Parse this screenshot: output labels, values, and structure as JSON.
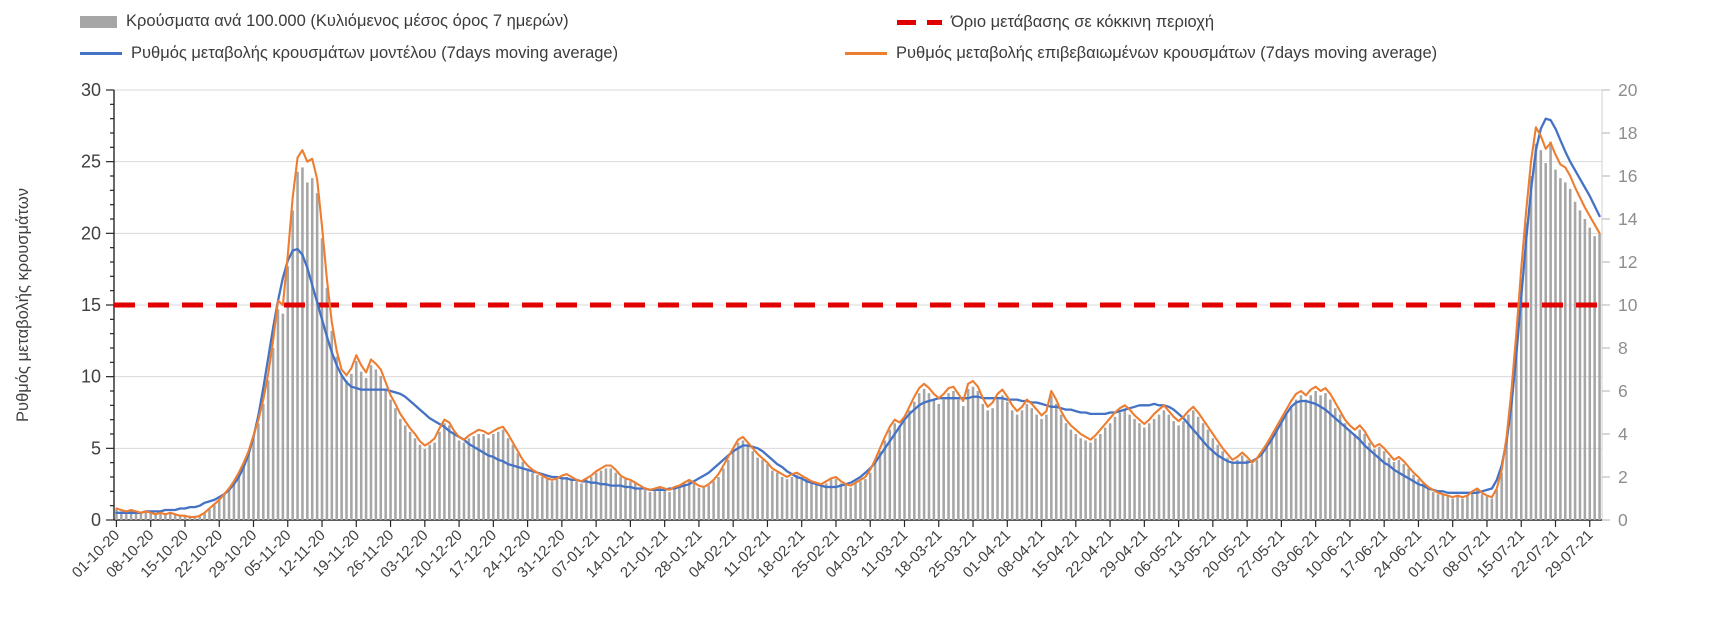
{
  "chart_data": {
    "type": "combo",
    "subtype": "bar+line",
    "grid": "horizontal",
    "legend_position": "top",
    "x_tick_interval_days": 7,
    "x_tick_labels": [
      "01-10-20",
      "08-10-20",
      "15-10-20",
      "22-10-20",
      "29-10-20",
      "05-11-20",
      "12-11-20",
      "19-11-20",
      "26-11-20",
      "03-12-20",
      "10-12-20",
      "17-12-20",
      "24-12-20",
      "31-12-20",
      "07-01-21",
      "14-01-21",
      "21-01-21",
      "28-01-21",
      "04-02-21",
      "11-02-21",
      "18-02-21",
      "25-02-21",
      "04-03-21",
      "11-03-21",
      "18-03-21",
      "25-03-21",
      "01-04-21",
      "08-04-21",
      "15-04-21",
      "22-04-21",
      "29-04-21",
      "06-05-21",
      "13-05-21",
      "20-05-21",
      "27-05-21",
      "03-06-21",
      "10-06-21",
      "17-06-21",
      "24-06-21",
      "01-07-21",
      "08-07-21",
      "15-07-21",
      "22-07-21",
      "29-07-21"
    ],
    "left_axis": {
      "title": "Ρυθμός μεταβολής κρουσμάτων",
      "min": 0,
      "max": 30,
      "major": 5,
      "minor": 1,
      "ticks": [
        0,
        5,
        10,
        15,
        20,
        25,
        30
      ],
      "label_color": "#404040"
    },
    "right_axis": {
      "min": 0,
      "max": 20,
      "major": 2,
      "ticks": [
        0,
        2,
        4,
        6,
        8,
        10,
        12,
        14,
        16,
        18,
        20
      ],
      "label_color": "#8e8e8e"
    },
    "threshold": {
      "label": "Όριο μετάβασης σε κόκκινη περιοχή",
      "value_left_axis": 15,
      "color": "#e00000"
    },
    "series": [
      {
        "name": "Κρούσματα ανά 100.000 (Κυλιόμενος μέσος όρος 7 ημερών)",
        "type": "bar",
        "axis": "right",
        "color": "#a6a6a6",
        "values": [
          0.5,
          0.4,
          0.4,
          0.5,
          0.4,
          0.3,
          0.4,
          0.3,
          0.3,
          0.3,
          0.3,
          0.3,
          0.3,
          0.2,
          0.2,
          0.2,
          0.2,
          0.2,
          0.3,
          0.5,
          0.7,
          0.9,
          1.2,
          1.4,
          1.7,
          2.1,
          2.6,
          3.1,
          3.8,
          4.5,
          5.4,
          6.5,
          8.0,
          9.8,
          9.6,
          11.8,
          14.4,
          16.2,
          16.4,
          15.7,
          15.9,
          15.2,
          13.1,
          10.8,
          8.8,
          7.6,
          6.7,
          6.5,
          6.8,
          7.4,
          6.9,
          6.6,
          7.2,
          7.0,
          6.7,
          6.1,
          5.6,
          5.2,
          4.7,
          4.4,
          4.1,
          3.8,
          3.5,
          3.3,
          3.5,
          3.6,
          4.1,
          4.5,
          4.4,
          4.0,
          3.7,
          3.6,
          3.8,
          3.9,
          4.0,
          4.0,
          3.8,
          4.0,
          4.1,
          4.2,
          3.8,
          3.5,
          3.1,
          2.7,
          2.4,
          2.2,
          2.1,
          2.0,
          1.9,
          1.8,
          1.9,
          2.0,
          2.0,
          1.9,
          1.8,
          1.7,
          1.9,
          2.0,
          2.2,
          2.3,
          2.4,
          2.4,
          2.2,
          2.0,
          1.9,
          1.8,
          1.7,
          1.5,
          1.4,
          1.3,
          1.4,
          1.5,
          1.4,
          1.3,
          1.5,
          1.5,
          1.7,
          1.8,
          1.7,
          1.5,
          1.5,
          1.6,
          1.8,
          2.0,
          2.4,
          2.8,
          3.2,
          3.6,
          3.7,
          3.5,
          3.2,
          2.9,
          2.8,
          2.6,
          2.3,
          2.2,
          2.0,
          1.9,
          2.0,
          2.1,
          2.0,
          1.9,
          1.7,
          1.7,
          1.6,
          1.7,
          1.9,
          1.9,
          1.7,
          1.6,
          1.5,
          1.7,
          1.8,
          1.9,
          2.2,
          2.7,
          3.2,
          3.7,
          4.2,
          4.5,
          4.4,
          4.6,
          5.1,
          5.5,
          5.9,
          6.1,
          5.9,
          5.6,
          5.4,
          5.6,
          5.9,
          6.0,
          5.6,
          5.3,
          6.1,
          6.2,
          6.0,
          5.4,
          5.1,
          5.2,
          5.6,
          5.8,
          5.5,
          5.1,
          4.9,
          5.1,
          5.4,
          5.2,
          4.9,
          4.7,
          4.9,
          5.8,
          5.4,
          4.9,
          4.5,
          4.2,
          4.0,
          3.8,
          3.7,
          3.6,
          3.8,
          4.0,
          4.3,
          4.5,
          4.8,
          5.0,
          5.1,
          4.9,
          4.7,
          4.5,
          4.3,
          4.5,
          4.7,
          4.9,
          5.1,
          4.9,
          4.6,
          4.4,
          4.6,
          4.9,
          5.1,
          4.8,
          4.5,
          4.2,
          3.8,
          3.5,
          3.2,
          2.9,
          2.7,
          2.8,
          3.0,
          2.8,
          2.6,
          2.8,
          3.1,
          3.4,
          3.8,
          4.2,
          4.5,
          4.9,
          5.3,
          5.6,
          5.8,
          5.6,
          5.8,
          6.0,
          5.8,
          5.9,
          5.6,
          5.2,
          4.9,
          4.5,
          4.2,
          4.0,
          4.2,
          4.0,
          3.6,
          3.3,
          3.4,
          3.2,
          2.9,
          2.7,
          2.8,
          2.6,
          2.4,
          2.1,
          1.9,
          1.7,
          1.5,
          1.3,
          1.2,
          1.2,
          1.1,
          1.0,
          1.1,
          1.0,
          1.1,
          1.3,
          1.4,
          1.2,
          1.1,
          1.0,
          1.4,
          2.2,
          3.7,
          5.8,
          8.3,
          11.2,
          13.8,
          16.0,
          17.5,
          17.2,
          16.6,
          17.6,
          16.3,
          15.9,
          15.7,
          15.4,
          14.8,
          14.4,
          14.0,
          13.6,
          13.2,
          13.3
        ]
      },
      {
        "name": "Ρυθμός μεταβολής κρουσμάτων μοντέλου (7days moving average)",
        "type": "line",
        "axis": "left",
        "color": "#4472c4",
        "values": [
          0.5,
          0.5,
          0.5,
          0.5,
          0.5,
          0.5,
          0.6,
          0.6,
          0.6,
          0.6,
          0.7,
          0.7,
          0.7,
          0.8,
          0.8,
          0.9,
          0.9,
          1.0,
          1.2,
          1.3,
          1.4,
          1.6,
          1.8,
          2.1,
          2.5,
          3.0,
          3.7,
          4.6,
          5.8,
          7.3,
          9.2,
          11.3,
          13.4,
          15.3,
          16.9,
          18.1,
          18.8,
          18.9,
          18.5,
          17.6,
          16.4,
          15.2,
          14.0,
          12.8,
          11.7,
          10.8,
          10.1,
          9.6,
          9.3,
          9.2,
          9.1,
          9.1,
          9.1,
          9.1,
          9.1,
          9.1,
          9.0,
          8.9,
          8.8,
          8.6,
          8.3,
          8.0,
          7.7,
          7.4,
          7.1,
          6.9,
          6.7,
          6.5,
          6.2,
          6.0,
          5.8,
          5.6,
          5.3,
          5.1,
          4.9,
          4.7,
          4.5,
          4.4,
          4.2,
          4.1,
          3.9,
          3.8,
          3.7,
          3.6,
          3.5,
          3.4,
          3.3,
          3.2,
          3.1,
          3.0,
          3.0,
          2.9,
          2.9,
          2.8,
          2.8,
          2.7,
          2.7,
          2.6,
          2.6,
          2.5,
          2.5,
          2.4,
          2.4,
          2.4,
          2.3,
          2.3,
          2.2,
          2.2,
          2.2,
          2.1,
          2.1,
          2.1,
          2.1,
          2.2,
          2.2,
          2.3,
          2.4,
          2.5,
          2.7,
          2.9,
          3.1,
          3.3,
          3.6,
          3.9,
          4.2,
          4.5,
          4.8,
          5.0,
          5.2,
          5.2,
          5.1,
          5.0,
          4.8,
          4.5,
          4.2,
          3.9,
          3.7,
          3.4,
          3.2,
          3.0,
          2.9,
          2.7,
          2.6,
          2.5,
          2.4,
          2.3,
          2.3,
          2.3,
          2.4,
          2.5,
          2.6,
          2.8,
          3.0,
          3.3,
          3.6,
          4.0,
          4.5,
          5.0,
          5.5,
          6.0,
          6.5,
          7.0,
          7.4,
          7.7,
          8.0,
          8.2,
          8.3,
          8.4,
          8.5,
          8.5,
          8.5,
          8.5,
          8.5,
          8.5,
          8.5,
          8.6,
          8.6,
          8.5,
          8.5,
          8.5,
          8.5,
          8.5,
          8.4,
          8.4,
          8.4,
          8.3,
          8.3,
          8.2,
          8.2,
          8.1,
          8.0,
          7.9,
          7.9,
          7.8,
          7.7,
          7.7,
          7.6,
          7.5,
          7.5,
          7.4,
          7.4,
          7.4,
          7.4,
          7.5,
          7.5,
          7.6,
          7.7,
          7.8,
          7.9,
          8.0,
          8.0,
          8.0,
          8.1,
          8.0,
          8.0,
          7.9,
          7.7,
          7.4,
          7.1,
          6.7,
          6.3,
          5.9,
          5.5,
          5.1,
          4.8,
          4.5,
          4.3,
          4.1,
          4.0,
          4.0,
          4.0,
          4.0,
          4.1,
          4.3,
          4.6,
          5.1,
          5.6,
          6.2,
          6.8,
          7.4,
          7.9,
          8.2,
          8.3,
          8.3,
          8.2,
          8.1,
          7.9,
          7.7,
          7.4,
          7.1,
          6.8,
          6.5,
          6.2,
          5.9,
          5.6,
          5.2,
          4.9,
          4.6,
          4.3,
          4.0,
          3.8,
          3.5,
          3.3,
          3.1,
          2.9,
          2.7,
          2.5,
          2.4,
          2.2,
          2.1,
          2.0,
          2.0,
          1.9,
          1.9,
          1.9,
          1.9,
          1.9,
          1.9,
          1.9,
          2.0,
          2.1,
          2.2,
          2.8,
          3.8,
          5.5,
          8.0,
          11.5,
          15.5,
          19.5,
          23.0,
          25.8,
          27.3,
          28.0,
          27.9,
          27.3,
          26.5,
          25.7,
          25.0,
          24.4,
          23.8,
          23.2,
          22.6,
          21.9,
          21.2
        ]
      },
      {
        "name": "Ρυθμός μεταβολής επιβεβαιωμένων κρουσμάτων (7days moving average)",
        "type": "line",
        "axis": "left",
        "color": "#ed7d31",
        "values": [
          0.8,
          0.7,
          0.6,
          0.7,
          0.6,
          0.5,
          0.6,
          0.5,
          0.4,
          0.5,
          0.4,
          0.5,
          0.4,
          0.3,
          0.3,
          0.2,
          0.2,
          0.3,
          0.5,
          0.8,
          1.1,
          1.4,
          1.8,
          2.2,
          2.7,
          3.3,
          4.0,
          4.8,
          5.9,
          7.0,
          8.4,
          10.2,
          12.5,
          15.3,
          15.0,
          18.5,
          22.5,
          25.3,
          25.8,
          25.0,
          25.2,
          23.8,
          20.5,
          16.8,
          13.8,
          11.8,
          10.5,
          10.1,
          10.6,
          11.5,
          10.8,
          10.3,
          11.2,
          10.9,
          10.5,
          9.6,
          8.7,
          8.1,
          7.4,
          6.9,
          6.4,
          6.0,
          5.5,
          5.2,
          5.4,
          5.7,
          6.4,
          7.0,
          6.8,
          6.2,
          5.8,
          5.6,
          5.9,
          6.1,
          6.3,
          6.2,
          6.0,
          6.2,
          6.4,
          6.5,
          6.0,
          5.4,
          4.8,
          4.2,
          3.8,
          3.5,
          3.3,
          3.1,
          2.9,
          2.8,
          2.9,
          3.1,
          3.2,
          3.0,
          2.8,
          2.7,
          2.9,
          3.1,
          3.4,
          3.6,
          3.8,
          3.8,
          3.5,
          3.1,
          2.9,
          2.8,
          2.6,
          2.4,
          2.2,
          2.1,
          2.2,
          2.3,
          2.2,
          2.1,
          2.3,
          2.4,
          2.6,
          2.8,
          2.6,
          2.4,
          2.3,
          2.5,
          2.8,
          3.2,
          3.8,
          4.4,
          5.0,
          5.6,
          5.8,
          5.4,
          5.0,
          4.6,
          4.3,
          4.0,
          3.6,
          3.4,
          3.2,
          3.0,
          3.2,
          3.3,
          3.1,
          2.9,
          2.7,
          2.6,
          2.5,
          2.7,
          2.9,
          3.0,
          2.7,
          2.5,
          2.4,
          2.6,
          2.8,
          3.0,
          3.5,
          4.2,
          5.0,
          5.8,
          6.5,
          7.0,
          6.8,
          7.2,
          7.9,
          8.6,
          9.2,
          9.5,
          9.2,
          8.8,
          8.5,
          8.8,
          9.2,
          9.3,
          8.8,
          8.3,
          9.5,
          9.7,
          9.3,
          8.5,
          7.9,
          8.2,
          8.8,
          9.1,
          8.6,
          8.0,
          7.6,
          7.9,
          8.4,
          8.1,
          7.7,
          7.3,
          7.6,
          9.0,
          8.4,
          7.6,
          7.0,
          6.6,
          6.3,
          6.0,
          5.8,
          5.6,
          5.9,
          6.3,
          6.7,
          7.1,
          7.5,
          7.8,
          8.0,
          7.7,
          7.3,
          7.0,
          6.7,
          7.0,
          7.4,
          7.7,
          8.0,
          7.6,
          7.2,
          6.9,
          7.2,
          7.6,
          7.9,
          7.5,
          7.0,
          6.5,
          6.0,
          5.5,
          5.0,
          4.6,
          4.2,
          4.4,
          4.7,
          4.4,
          4.0,
          4.3,
          4.8,
          5.3,
          5.9,
          6.5,
          7.1,
          7.7,
          8.3,
          8.8,
          9.0,
          8.7,
          9.1,
          9.3,
          9.0,
          9.2,
          8.8,
          8.2,
          7.6,
          7.0,
          6.6,
          6.3,
          6.6,
          6.2,
          5.6,
          5.1,
          5.3,
          5.0,
          4.6,
          4.2,
          4.4,
          4.1,
          3.7,
          3.3,
          3.0,
          2.6,
          2.3,
          2.1,
          1.9,
          1.8,
          1.7,
          1.6,
          1.7,
          1.6,
          1.7,
          2.0,
          2.2,
          1.9,
          1.7,
          1.6,
          2.2,
          3.5,
          5.8,
          9.0,
          13.0,
          17.5,
          21.5,
          25.0,
          27.4,
          26.8,
          25.9,
          26.3,
          25.5,
          24.8,
          24.6,
          24.0,
          23.2,
          22.5,
          21.8,
          21.2,
          20.6,
          20.0
        ]
      }
    ],
    "style": {
      "gridline_color": "#d9d9d9",
      "axis_line_color": "#262626",
      "right_axis_line_color": "#d9d9d9",
      "x_label_color": "#404040",
      "x_label_rotation_deg": -45
    }
  }
}
